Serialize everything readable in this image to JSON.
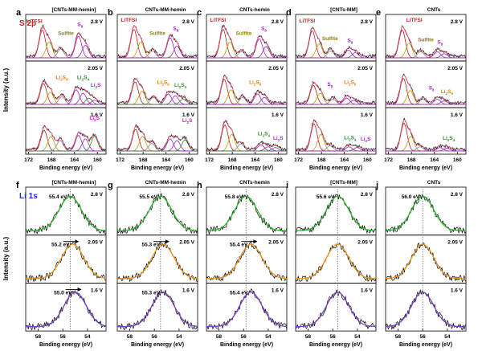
{
  "figure": {
    "y_axis_title": "Intensity (a.u.)",
    "x_axis_title": "Binding energy (eV)",
    "row1_label": "S 2p",
    "row2_label": "Li 1s",
    "potentials": [
      "2.8 V",
      "2.05 V",
      "1.6 V"
    ]
  },
  "chart_data": [
    {
      "type": "line",
      "id": "a",
      "letter": "a",
      "sample": "[CNTs-MM-hemin]",
      "spectrum": "S 2p",
      "xlabel": "Binding energy (eV)",
      "ylabel": "Intensity (a.u.)",
      "xlim": [
        172.5,
        158.5
      ],
      "xticks": [
        172,
        168,
        164,
        160
      ],
      "xtick_labels": [
        "172",
        "168",
        "164",
        "160"
      ],
      "series": [
        {
          "potential": "2.8 V",
          "peaks": [
            [
              169.6,
              0.8
            ],
            [
              168.4,
              0.45
            ],
            [
              166.4,
              0.25
            ],
            [
              163.3,
              0.62
            ],
            [
              162.1,
              0.36
            ]
          ],
          "labels": [
            {
              "text": "LiTFSI",
              "x": 171.0,
              "y": 0.95,
              "color": "#b22222"
            },
            {
              "text": "Sulfite",
              "x": 165.5,
              "y": 0.62,
              "color": "#8b8000"
            },
            {
              "text": "S8",
              "x": 163.0,
              "y": 0.86,
              "color": "#a020c0"
            }
          ]
        },
        {
          "potential": "2.05 V",
          "peaks": [
            [
              169.4,
              0.6
            ],
            [
              168.2,
              0.35
            ],
            [
              166.2,
              0.22
            ],
            [
              163.7,
              0.42
            ],
            [
              162.5,
              0.32
            ],
            [
              161.5,
              0.18
            ],
            [
              160.5,
              0.12
            ]
          ],
          "labels": [
            {
              "text": "Li2S6",
              "x": 166.2,
              "y": 0.68,
              "color": "#e07b00"
            },
            {
              "text": "Li2S4",
              "x": 162.5,
              "y": 0.68,
              "color": "#2e8b2e"
            },
            {
              "text": "Li2S",
              "x": 160.3,
              "y": 0.48,
              "color": "#c020c0"
            }
          ]
        },
        {
          "potential": "1.6 V",
          "peaks": [
            [
              169.3,
              0.6
            ],
            [
              168.1,
              0.42
            ],
            [
              166.5,
              0.3
            ],
            [
              163.3,
              0.45
            ],
            [
              162.1,
              0.35
            ],
            [
              160.5,
              0.42
            ]
          ],
          "labels": [
            {
              "text": "Li2S",
              "x": 160.5,
              "y": 0.85,
              "color": "#c020c0"
            }
          ]
        }
      ]
    },
    {
      "type": "line",
      "id": "b",
      "letter": "b",
      "sample": "CNTs-MM-hemin",
      "spectrum": "S 2p",
      "xlabel": "Binding energy (eV)",
      "ylabel": "",
      "xlim": [
        172.5,
        158.5
      ],
      "xticks": [
        172,
        168,
        164,
        160
      ],
      "xtick_labels": [
        "172",
        "168",
        "164",
        "160"
      ],
      "series": [
        {
          "potential": "2.8 V",
          "peaks": [
            [
              169.6,
              0.82
            ],
            [
              168.4,
              0.45
            ],
            [
              166.4,
              0.2
            ],
            [
              163.3,
              0.58
            ],
            [
              162.1,
              0.34
            ]
          ],
          "labels": [
            {
              "text": "LiTFSI",
              "x": 170.5,
              "y": 0.98,
              "color": "#b22222"
            },
            {
              "text": "Sulfite",
              "x": 165.5,
              "y": 0.62,
              "color": "#8b8000"
            },
            {
              "text": "S8",
              "x": 162.3,
              "y": 0.75,
              "color": "#a020c0"
            }
          ]
        },
        {
          "potential": "2.05 V",
          "peaks": [
            [
              169.4,
              0.65
            ],
            [
              168.2,
              0.38
            ],
            [
              166.2,
              0.2
            ],
            [
              163.6,
              0.3
            ],
            [
              162.4,
              0.25
            ],
            [
              161.0,
              0.15
            ]
          ],
          "labels": [
            {
              "text": "Li2S6",
              "x": 164.5,
              "y": 0.55,
              "color": "#e07b00"
            },
            {
              "text": "Li2S4",
              "x": 161.5,
              "y": 0.48,
              "color": "#2e8b2e"
            }
          ]
        },
        {
          "potential": "1.6 V",
          "peaks": [
            [
              169.3,
              0.62
            ],
            [
              168.1,
              0.42
            ],
            [
              166.5,
              0.22
            ],
            [
              163.3,
              0.35
            ],
            [
              162.1,
              0.3
            ],
            [
              160.7,
              0.32
            ]
          ],
          "labels": [
            {
              "text": "Li2S",
              "x": 160.3,
              "y": 0.78,
              "color": "#c020c0"
            }
          ]
        }
      ]
    },
    {
      "type": "line",
      "id": "c",
      "letter": "c",
      "sample": "CNTs-hemin",
      "spectrum": "S 2p",
      "xlabel": "Binding energy (eV)",
      "ylabel": "",
      "xlim": [
        172.5,
        158.5
      ],
      "xticks": [
        172,
        168,
        164,
        160
      ],
      "xtick_labels": [
        "172",
        "168",
        "164",
        "160"
      ],
      "series": [
        {
          "potential": "2.8 V",
          "peaks": [
            [
              169.6,
              0.82
            ],
            [
              168.4,
              0.45
            ],
            [
              166.4,
              0.18
            ],
            [
              163.3,
              0.55
            ],
            [
              162.1,
              0.32
            ]
          ],
          "labels": [
            {
              "text": "LiTFSI",
              "x": 170.5,
              "y": 0.98,
              "color": "#b22222"
            },
            {
              "text": "Sulfite",
              "x": 166.0,
              "y": 0.62,
              "color": "#8b8000"
            },
            {
              "text": "S8",
              "x": 162.5,
              "y": 0.75,
              "color": "#a020c0"
            }
          ]
        },
        {
          "potential": "2.05 V",
          "peaks": [
            [
              169.4,
              0.72
            ],
            [
              168.2,
              0.42
            ],
            [
              166.2,
              0.2
            ],
            [
              163.6,
              0.3
            ],
            [
              162.4,
              0.2
            ]
          ],
          "labels": [
            {
              "text": "Li2S6",
              "x": 164.0,
              "y": 0.55,
              "color": "#e07b00"
            }
          ]
        },
        {
          "potential": "1.6 V",
          "peaks": [
            [
              169.3,
              0.75
            ],
            [
              168.1,
              0.48
            ],
            [
              166.5,
              0.2
            ],
            [
              163.0,
              0.18
            ],
            [
              161.8,
              0.12
            ],
            [
              160.5,
              0.1
            ]
          ],
          "labels": [
            {
              "text": "Li2S4",
              "x": 162.5,
              "y": 0.42,
              "color": "#2e8b2e"
            },
            {
              "text": "Li2S",
              "x": 160.0,
              "y": 0.3,
              "color": "#c020c0"
            }
          ]
        }
      ]
    },
    {
      "type": "line",
      "id": "d",
      "letter": "d",
      "sample": "[CNTs-MM]",
      "spectrum": "S 2p",
      "xlabel": "Binding energy (eV)",
      "ylabel": "",
      "xlim": [
        172.5,
        158.5
      ],
      "xticks": [
        172,
        168,
        164,
        160
      ],
      "xtick_labels": [
        "172",
        "168",
        "164",
        "160"
      ],
      "series": [
        {
          "potential": "2.8 V",
          "peaks": [
            [
              169.6,
              0.78
            ],
            [
              168.4,
              0.4
            ],
            [
              166.4,
              0.2
            ],
            [
              163.3,
              0.22
            ],
            [
              162.1,
              0.15
            ]
          ],
          "labels": [
            {
              "text": "LiTFSI",
              "x": 170.5,
              "y": 0.96,
              "color": "#b22222"
            },
            {
              "text": "Sulfite",
              "x": 166.5,
              "y": 0.48,
              "color": "#8b8000"
            },
            {
              "text": "S8",
              "x": 163.0,
              "y": 0.42,
              "color": "#a020c0"
            }
          ]
        },
        {
          "potential": "2.05 V",
          "peaks": [
            [
              169.4,
              0.55
            ],
            [
              168.2,
              0.32
            ],
            [
              166.0,
              0.15
            ],
            [
              163.6,
              0.18
            ],
            [
              162.4,
              0.12
            ]
          ],
          "labels": [
            {
              "text": "S8",
              "x": 166.5,
              "y": 0.5,
              "color": "#a020c0"
            },
            {
              "text": "Li2S6",
              "x": 163.0,
              "y": 0.55,
              "color": "#e07b00"
            }
          ]
        },
        {
          "potential": "1.6 V",
          "peaks": [
            [
              169.3,
              0.78
            ],
            [
              168.1,
              0.48
            ],
            [
              166.5,
              0.15
            ],
            [
              163.2,
              0.12
            ],
            [
              161.8,
              0.1
            ]
          ],
          "labels": [
            {
              "text": "Li2S4",
              "x": 163.0,
              "y": 0.32,
              "color": "#2e8b2e"
            },
            {
              "text": "Li2S",
              "x": 160.3,
              "y": 0.28,
              "color": "#c020c0"
            }
          ]
        }
      ]
    },
    {
      "type": "line",
      "id": "e",
      "letter": "e",
      "sample": "CNTs",
      "spectrum": "S 2p",
      "xlabel": "Binding energy (eV)",
      "ylabel": "",
      "xlim": [
        172.5,
        158.5
      ],
      "xticks": [
        172,
        168,
        164,
        160
      ],
      "xtick_labels": [
        "172",
        "168",
        "164",
        "160"
      ],
      "series": [
        {
          "potential": "2.8 V",
          "peaks": [
            [
              169.6,
              0.8
            ],
            [
              168.4,
              0.42
            ],
            [
              166.4,
              0.18
            ],
            [
              163.5,
              0.18
            ],
            [
              162.3,
              0.12
            ]
          ],
          "labels": [
            {
              "text": "LiTFSI",
              "x": 167.5,
              "y": 0.98,
              "color": "#b22222"
            },
            {
              "text": "Sulfite",
              "x": 165.5,
              "y": 0.45,
              "color": "#8b8000"
            },
            {
              "text": "S8",
              "x": 163.0,
              "y": 0.38,
              "color": "#a020c0"
            }
          ]
        },
        {
          "potential": "2.05 V",
          "peaks": [
            [
              169.4,
              0.75
            ],
            [
              168.2,
              0.4
            ],
            [
              166.0,
              0.15
            ],
            [
              163.5,
              0.15
            ],
            [
              162.3,
              0.1
            ]
          ],
          "labels": [
            {
              "text": "S8",
              "x": 164.5,
              "y": 0.4,
              "color": "#a020c0"
            },
            {
              "text": "Li2S6",
              "x": 161.8,
              "y": 0.3,
              "color": "#e07b00"
            }
          ]
        },
        {
          "potential": "1.6 V",
          "peaks": [
            [
              169.3,
              0.8
            ],
            [
              168.1,
              0.42
            ],
            [
              166.5,
              0.12
            ],
            [
              163.0,
              0.1
            ],
            [
              161.8,
              0.08
            ]
          ],
          "labels": [
            {
              "text": "Li2S4",
              "x": 161.5,
              "y": 0.3,
              "color": "#2e8b2e"
            }
          ]
        }
      ]
    },
    {
      "type": "line",
      "id": "f",
      "letter": "f",
      "sample": "[CNTs-MM-hemin]",
      "spectrum": "Li 1s",
      "xlabel": "Binding energy (eV)",
      "ylabel": "Intensity (a.u.)",
      "xlim": [
        59.0,
        52.5
      ],
      "xticks": [
        58,
        56,
        54
      ],
      "xtick_labels": [
        "58",
        "56",
        "54"
      ],
      "reference_line": 55.4,
      "series": [
        {
          "potential": "2.8 V",
          "peak": 55.4,
          "label": "55.4 eV",
          "fit_color": "#2fb52f",
          "arrow": false
        },
        {
          "potential": "2.05 V",
          "peak": 55.2,
          "label": "55.2 eV",
          "fit_color": "#e8901e",
          "arrow": true
        },
        {
          "potential": "1.6 V",
          "peak": 55.0,
          "label": "55.0 eV",
          "fit_color": "#7d3fc8",
          "arrow": true
        }
      ]
    },
    {
      "type": "line",
      "id": "g",
      "letter": "g",
      "sample": "CNTs-MM-hemin",
      "spectrum": "Li 1s",
      "xlabel": "Binding energy (eV)",
      "ylabel": "",
      "xlim": [
        59.0,
        52.5
      ],
      "xticks": [
        58,
        56,
        54
      ],
      "xtick_labels": [
        "58",
        "56",
        "54"
      ],
      "reference_line": 55.5,
      "series": [
        {
          "potential": "2.8 V",
          "peak": 55.5,
          "label": "55.5 eV",
          "fit_color": "#2fb52f",
          "arrow": false
        },
        {
          "potential": "2.05 V",
          "peak": 55.3,
          "label": "55.3 eV",
          "fit_color": "#e8901e",
          "arrow": true
        },
        {
          "potential": "1.6 V",
          "peak": 55.3,
          "label": "55.3 eV",
          "fit_color": "#7d3fc8",
          "arrow": false
        }
      ]
    },
    {
      "type": "line",
      "id": "h",
      "letter": "h",
      "sample": "CNTs-hemin",
      "spectrum": "Li 1s",
      "xlabel": "Binding energy (eV)",
      "ylabel": "",
      "xlim": [
        59.0,
        52.5
      ],
      "xticks": [
        58,
        56,
        54
      ],
      "xtick_labels": [
        "58",
        "56",
        "54"
      ],
      "reference_line": 55.8,
      "series": [
        {
          "potential": "2.8 V",
          "peak": 55.8,
          "label": "55.8 eV",
          "fit_color": "#2fb52f",
          "arrow": false
        },
        {
          "potential": "2.05 V",
          "peak": 55.4,
          "label": "55.4 eV",
          "fit_color": "#e8901e",
          "arrow": true
        },
        {
          "potential": "1.6 V",
          "peak": 55.4,
          "label": "55.4 eV",
          "fit_color": "#7d3fc8",
          "arrow": false
        }
      ]
    },
    {
      "type": "line",
      "id": "i",
      "letter": "i",
      "sample": "[CNTs-MM]",
      "spectrum": "Li 1s",
      "xlabel": "Binding energy (eV)",
      "ylabel": "",
      "xlim": [
        59.0,
        52.5
      ],
      "xticks": [
        58,
        56,
        54
      ],
      "xtick_labels": [
        "58",
        "56",
        "54"
      ],
      "reference_line": 55.6,
      "series": [
        {
          "potential": "2.8 V",
          "peak": 55.6,
          "label": "55.6 eV",
          "fit_color": "#2fb52f",
          "arrow": false
        },
        {
          "potential": "2.05 V",
          "peak": 55.6,
          "label": "",
          "fit_color": "#e8901e",
          "arrow": false
        },
        {
          "potential": "1.6 V",
          "peak": 55.6,
          "label": "",
          "fit_color": "#7d3fc8",
          "arrow": false
        }
      ]
    },
    {
      "type": "line",
      "id": "j",
      "letter": "j",
      "sample": "CNTs",
      "spectrum": "Li 1s",
      "xlabel": "Binding energy (eV)",
      "ylabel": "",
      "xlim": [
        59.0,
        52.5
      ],
      "xticks": [
        58,
        56,
        54
      ],
      "xtick_labels": [
        "58",
        "56",
        "54"
      ],
      "reference_line": 56.0,
      "series": [
        {
          "potential": "2.8 V",
          "peak": 56.0,
          "label": "56.0 eV",
          "fit_color": "#2fb52f",
          "arrow": false
        },
        {
          "potential": "2.05 V",
          "peak": 56.0,
          "label": "",
          "fit_color": "#e8901e",
          "arrow": false
        },
        {
          "potential": "1.6 V",
          "peak": 56.0,
          "label": "",
          "fit_color": "#7d3fc8",
          "arrow": false
        }
      ]
    }
  ]
}
